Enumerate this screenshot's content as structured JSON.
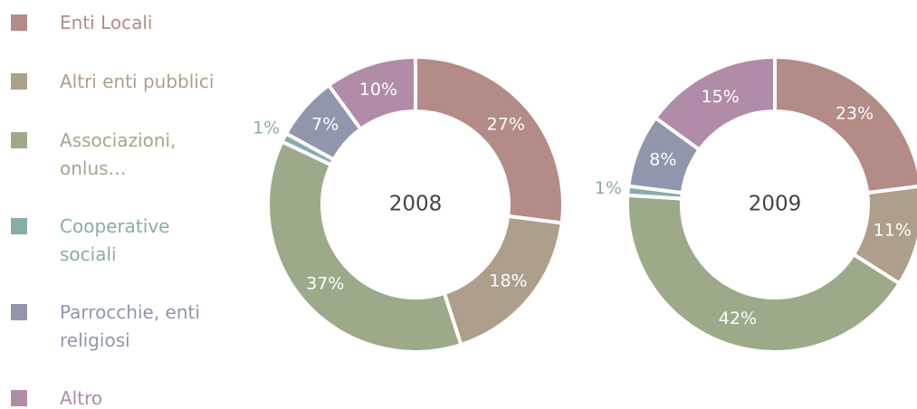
{
  "chart_data": [
    {
      "type": "pie",
      "title": "2008",
      "categories": [
        "Enti Locali",
        "Altri enti pubblici",
        "Associazioni, onlus…",
        "Cooperative sociali",
        "Parrocchie, enti religiosi",
        "Altro"
      ],
      "colors": [
        "#b38b87",
        "#ad9f8b",
        "#9caa8a",
        "#88acaa",
        "#9196ad",
        "#b08ca8"
      ],
      "values": [
        27,
        18,
        37,
        1,
        7,
        10
      ],
      "value_labels": [
        "27%",
        "18%",
        "37%",
        "1%",
        "7%",
        "10%"
      ]
    },
    {
      "type": "pie",
      "title": "2009",
      "categories": [
        "Enti Locali",
        "Altri enti pubblici",
        "Associazioni, onlus…",
        "Cooperative sociali",
        "Parrocchie, enti religiosi",
        "Altro"
      ],
      "colors": [
        "#b38b87",
        "#ad9f8b",
        "#9caa8a",
        "#88acaa",
        "#9196ad",
        "#b08ca8"
      ],
      "values": [
        23,
        11,
        42,
        1,
        8,
        15
      ],
      "value_labels": [
        "23%",
        "11%",
        "42%",
        "1%",
        "8%",
        "15%"
      ]
    }
  ]
}
